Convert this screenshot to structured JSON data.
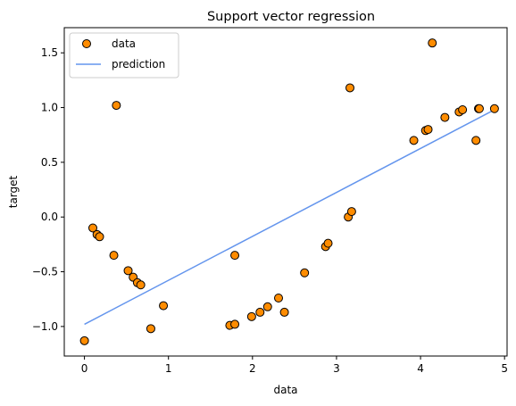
{
  "chart_data": {
    "type": "scatter",
    "title": "Support vector regression",
    "xlabel": "data",
    "ylabel": "target",
    "xlim": [
      -0.24,
      5.03
    ],
    "ylim": [
      -1.27,
      1.73
    ],
    "xticks": [
      0,
      1,
      2,
      3,
      4,
      5
    ],
    "yticks": [
      -1.0,
      -0.5,
      0.0,
      0.5,
      1.0,
      1.5
    ],
    "xtick_labels": [
      "0",
      "1",
      "2",
      "3",
      "4",
      "5"
    ],
    "ytick_labels": [
      "−1.0",
      "−0.5",
      "0.0",
      "0.5",
      "1.0",
      "1.5"
    ],
    "grid": false,
    "legend_position": "top-left",
    "series": [
      {
        "name": "data",
        "kind": "scatter",
        "color": "#ff8c00",
        "edgecolor": "#000000",
        "points": [
          [
            0.0,
            -1.13
          ],
          [
            0.1,
            -0.1
          ],
          [
            0.15,
            -0.16
          ],
          [
            0.18,
            -0.18
          ],
          [
            0.35,
            -0.35
          ],
          [
            0.38,
            1.02
          ],
          [
            0.52,
            -0.49
          ],
          [
            0.58,
            -0.55
          ],
          [
            0.63,
            -0.6
          ],
          [
            0.67,
            -0.62
          ],
          [
            0.79,
            -1.02
          ],
          [
            0.94,
            -0.81
          ],
          [
            1.73,
            -0.99
          ],
          [
            1.79,
            -0.98
          ],
          [
            1.79,
            -0.35
          ],
          [
            1.99,
            -0.91
          ],
          [
            2.09,
            -0.87
          ],
          [
            2.18,
            -0.82
          ],
          [
            2.31,
            -0.74
          ],
          [
            2.38,
            -0.87
          ],
          [
            2.62,
            -0.51
          ],
          [
            2.87,
            -0.27
          ],
          [
            2.9,
            -0.24
          ],
          [
            3.14,
            0.0
          ],
          [
            3.16,
            1.18
          ],
          [
            3.18,
            0.05
          ],
          [
            3.92,
            0.7
          ],
          [
            4.06,
            0.79
          ],
          [
            4.09,
            0.8
          ],
          [
            4.14,
            1.59
          ],
          [
            4.29,
            0.91
          ],
          [
            4.46,
            0.96
          ],
          [
            4.5,
            0.98
          ],
          [
            4.66,
            0.7
          ],
          [
            4.69,
            0.99
          ],
          [
            4.7,
            0.99
          ],
          [
            4.88,
            0.99
          ]
        ]
      },
      {
        "name": "prediction",
        "kind": "line",
        "color": "#6495ed",
        "points": [
          [
            0.0,
            -0.98
          ],
          [
            4.88,
            0.98
          ]
        ]
      }
    ]
  }
}
